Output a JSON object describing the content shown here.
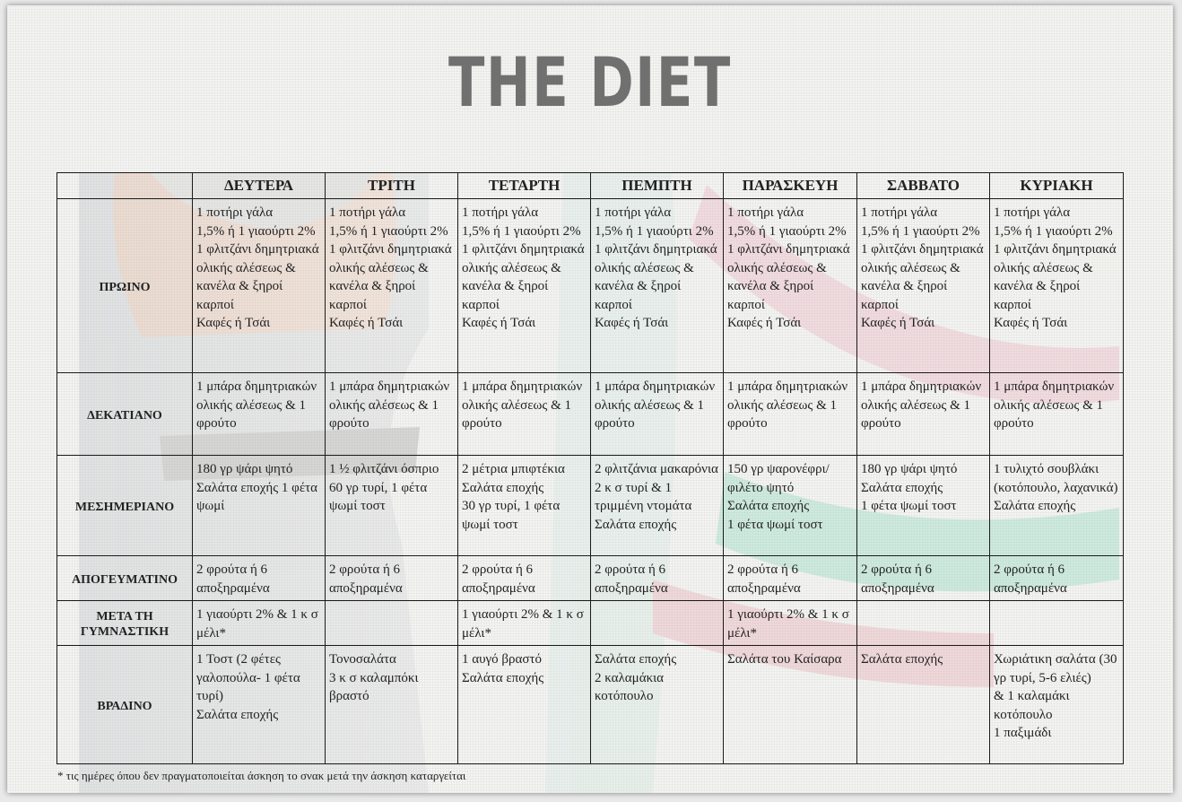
{
  "title": "THE DIET",
  "days": [
    "ΔΕΥΤΕΡΑ",
    "ΤΡΙΤΗ",
    "ΤΕΤΑΡΤΗ",
    "ΠΕΜΠΤΗ",
    "ΠΑΡΑΣΚΕΥΗ",
    "ΣΑΒΒΑΤΟ",
    "ΚΥΡΙΑΚΗ"
  ],
  "meals": [
    {
      "name": "ΠΡΩΙΝΟ",
      "cells": [
        "1 ποτήρι γάλα\n1,5% ή 1 γιαούρτι 2%\n1 φλιτζάνι δημητριακά ολικής αλέσεως & κανέλα & ξηροί καρποί\nΚαφές ή Τσάι",
        "1 ποτήρι γάλα\n1,5% ή 1 γιαούρτι 2%\n1 φλιτζάνι δημητριακά ολικής αλέσεως & κανέλα & ξηροί καρποί\nΚαφές ή Τσάι",
        "1 ποτήρι γάλα\n1,5% ή 1 γιαούρτι 2%\n1 φλιτζάνι δημητριακά ολικής αλέσεως & κανέλα & ξηροί καρποί\nΚαφές ή Τσάι",
        "1 ποτήρι γάλα\n1,5% ή 1 γιαούρτι 2%\n1 φλιτζάνι δημητριακά ολικής αλέσεως & κανέλα & ξηροί καρποί\nΚαφές ή Τσάι",
        "1 ποτήρι γάλα\n1,5% ή 1 γιαούρτι 2%\n1 φλιτζάνι δημητριακά ολικής αλέσεως & κανέλα & ξηροί καρποί\nΚαφές ή Τσάι",
        "1 ποτήρι γάλα\n1,5% ή 1 γιαούρτι 2%\n1 φλιτζάνι δημητριακά ολικής αλέσεως & κανέλα & ξηροί καρποί\nΚαφές ή Τσάι",
        "1 ποτήρι γάλα\n1,5% ή 1 γιαούρτι 2%\n1 φλιτζάνι δημητριακά ολικής αλέσεως & κανέλα & ξηροί καρποί\nΚαφές ή Τσάι"
      ]
    },
    {
      "name": "ΔΕΚΑΤΙΑΝΟ",
      "cells": [
        "1 μπάρα δημητριακών ολικής αλέσεως & 1 φρούτο",
        "1 μπάρα δημητριακών ολικής αλέσεως & 1 φρούτο",
        "1 μπάρα δημητριακών ολικής αλέσεως & 1 φρούτο",
        "1 μπάρα δημητριακών ολικής αλέσεως & 1 φρούτο",
        "1 μπάρα δημητριακών ολικής αλέσεως & 1 φρούτο",
        "1 μπάρα δημητριακών ολικής αλέσεως & 1 φρούτο",
        "1 μπάρα δημητριακών ολικής αλέσεως & 1 φρούτο"
      ]
    },
    {
      "name": "ΜΕΣΗΜΕΡΙΑΝΟ",
      "cells": [
        "180 γρ ψάρι ψητό\nΣαλάτα εποχής 1 φέτα ψωμί",
        "1 ½ φλιτζάνι όσπριο\n60 γρ τυρί, 1 φέτα ψωμί τοστ",
        "2 μέτρια μπιφτέκια\nΣαλάτα εποχής\n30 γρ τυρί, 1 φέτα ψωμί τοστ",
        "2 φλιτζάνια μακαρόνια\n2 κ σ τυρί & 1 τριμμένη ντομάτα\nΣαλάτα εποχής",
        "150 γρ ψαρονέφρι/ φιλέτο ψητό\nΣαλάτα εποχής\n1 φέτα ψωμί τοστ",
        "180 γρ ψάρι ψητό\nΣαλάτα εποχής\n1 φέτα ψωμί τοστ",
        "1 τυλιχτό σουβλάκι (κοτόπουλο, λαχανικά)\nΣαλάτα εποχής"
      ]
    },
    {
      "name": "ΑΠΟΓΕΥΜΑΤΙΝΟ",
      "cells": [
        "2 φρούτα ή 6 αποξηραμένα",
        "2 φρούτα ή 6 αποξηραμένα",
        "2 φρούτα ή 6 αποξηραμένα",
        "2 φρούτα ή 6 αποξηραμένα",
        "2 φρούτα ή 6 αποξηραμένα",
        "2 φρούτα ή 6 αποξηραμένα",
        "2 φρούτα ή 6 αποξηραμένα"
      ]
    },
    {
      "name": "ΜΕΤΑ ΤΗ ΓΥΜΝΑΣΤΙΚΗ",
      "cells": [
        "1 γιαούρτι 2% & 1 κ σ μέλι*",
        "",
        "1 γιαούρτι 2% & 1 κ σ μέλι*",
        "",
        "1 γιαούρτι 2% & 1 κ σ μέλι*",
        "",
        ""
      ]
    },
    {
      "name": "ΒΡΑΔΙΝΟ",
      "cells": [
        "1 Τοστ (2 φέτες γαλοπούλα- 1 φέτα τυρί)\nΣαλάτα εποχής",
        "Τονοσαλάτα\n3 κ σ καλαμπόκι βραστό",
        "1 αυγό βραστό\nΣαλάτα εποχής",
        "Σαλάτα εποχής\n2 καλαμάκια κοτόπουλο",
        "Σαλάτα του Καίσαρα",
        "Σαλάτα εποχής",
        "Χωριάτικη σαλάτα (30 γρ τυρί, 5-6 ελιές)\n& 1 καλαμάκι κοτόπουλο\n1 παξιμάδι"
      ]
    }
  ],
  "footnote": "* τις ημέρες όπου δεν πραγματοποιείται άσκηση το σνακ μετά την άσκηση καταργείται"
}
